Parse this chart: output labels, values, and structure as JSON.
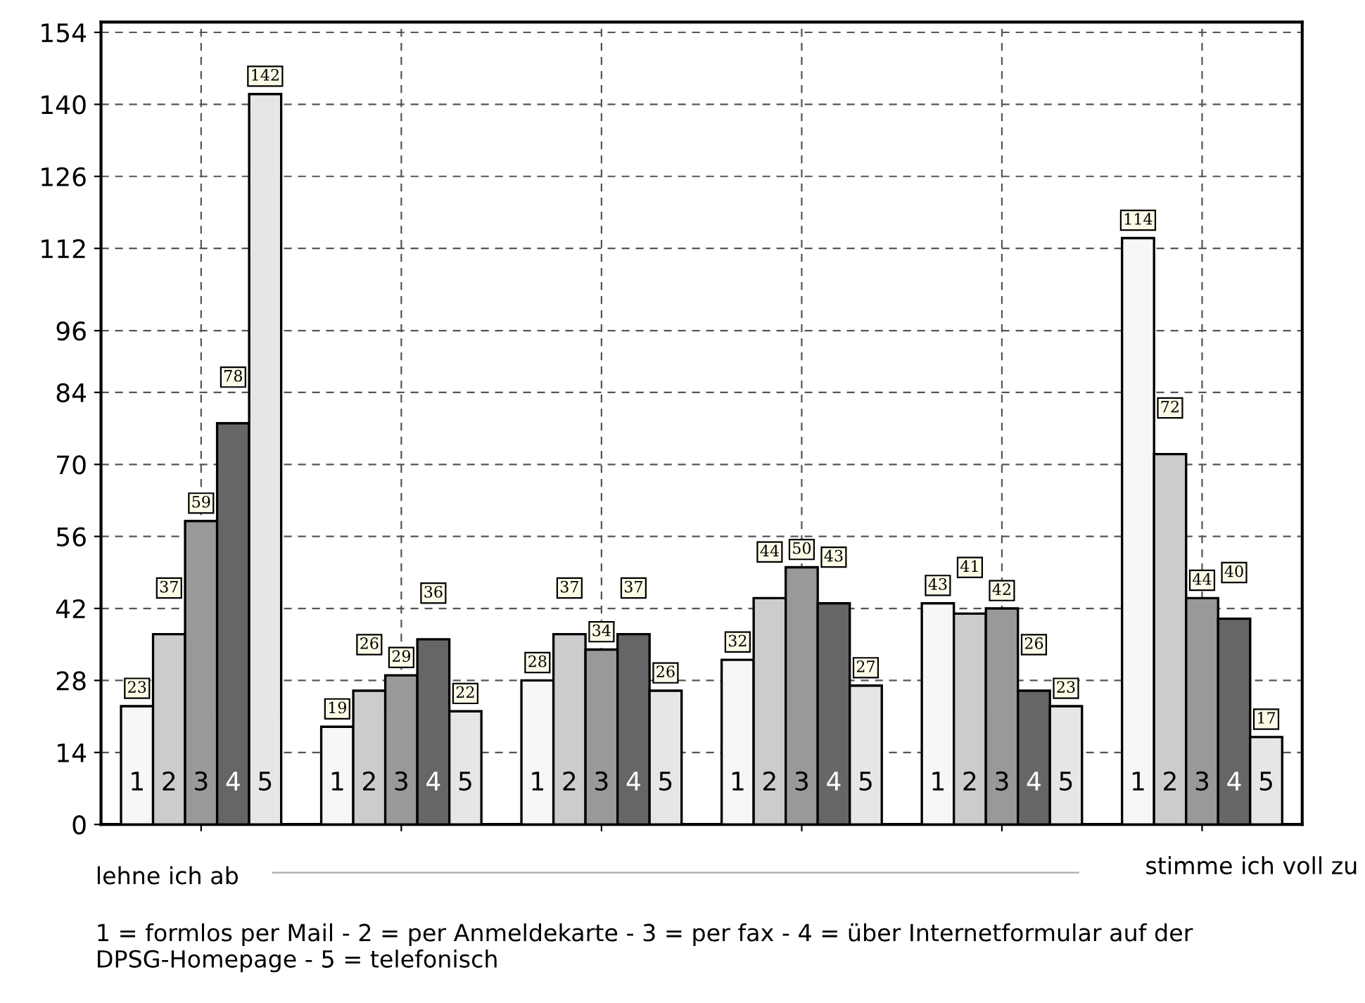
{
  "chart_data": {
    "type": "bar",
    "categories": [
      null,
      null,
      null,
      null,
      null,
      null
    ],
    "series": [
      {
        "name": "1",
        "color": "#f7f7f7",
        "values": [
          23,
          19,
          28,
          32,
          43,
          114
        ]
      },
      {
        "name": "2",
        "color": "#cccccc",
        "values": [
          37,
          26,
          37,
          44,
          41,
          72
        ]
      },
      {
        "name": "3",
        "color": "#999999",
        "values": [
          59,
          29,
          34,
          50,
          42,
          44
        ]
      },
      {
        "name": "4",
        "color": "#666666",
        "values": [
          78,
          36,
          37,
          43,
          26,
          40
        ]
      },
      {
        "name": "5",
        "color": "#e6e6e6",
        "values": [
          142,
          22,
          26,
          27,
          23,
          17
        ]
      }
    ],
    "ylim": [
      0,
      156
    ],
    "yticks": [
      0,
      14,
      28,
      42,
      56,
      70,
      84,
      96,
      112,
      126,
      140,
      154
    ],
    "grid": true,
    "data_labels": true,
    "annotations": [
      "lehne ich ab",
      "stimme ich voll zu",
      "1 = formlos per Mail - 2 = per Anmeldekarte - 3 = per fax - 4 = über Internetformular auf der DPSG-Homepage - 5 = telefonisch"
    ]
  }
}
